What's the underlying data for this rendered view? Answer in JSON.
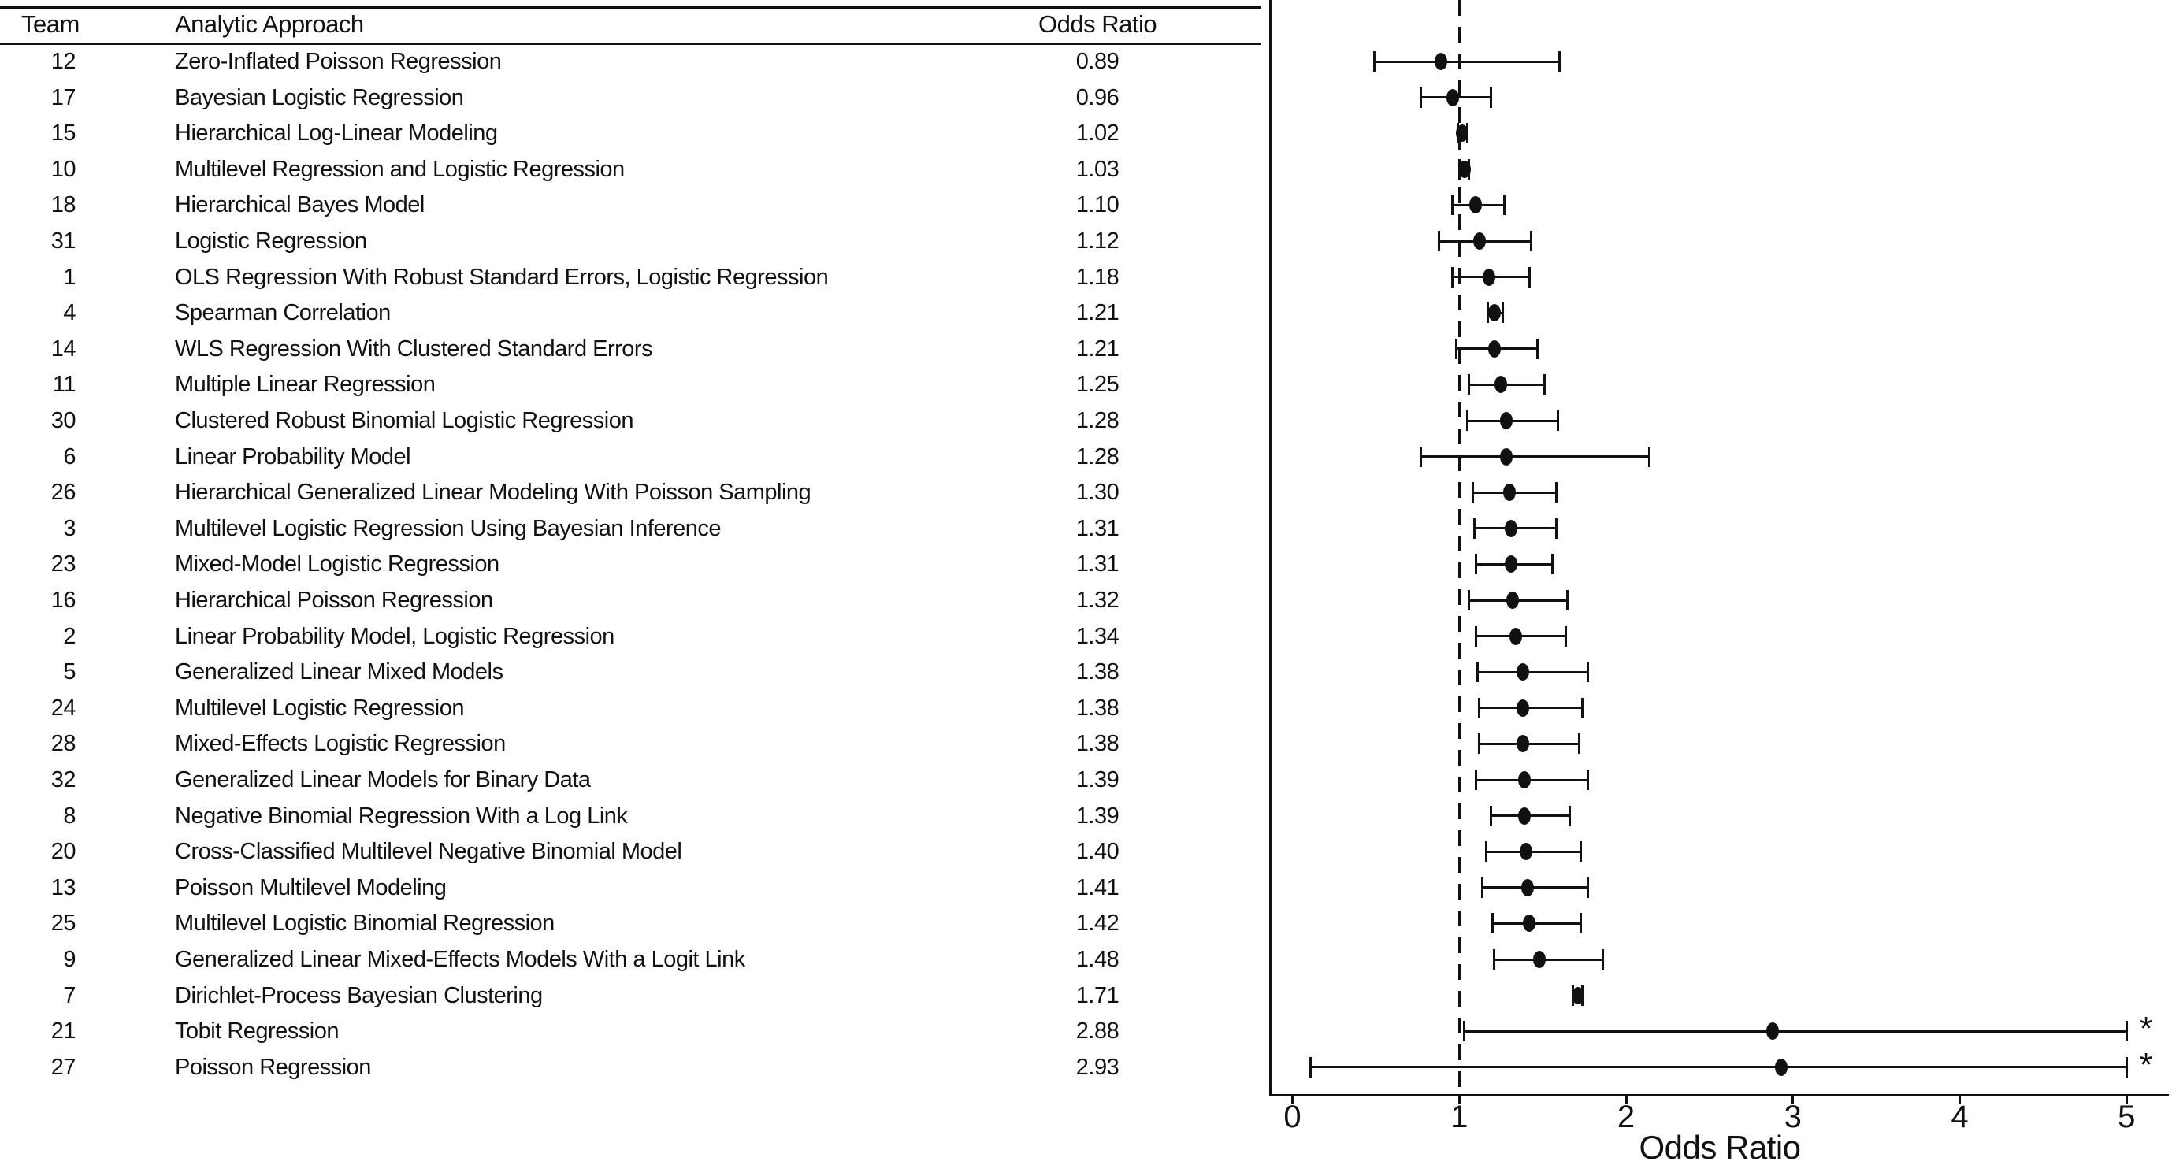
{
  "table": {
    "headers": {
      "team": "Team",
      "approach": "Analytic Approach",
      "odds_ratio": "Odds Ratio"
    }
  },
  "axis": {
    "xlabel": "Odds Ratio",
    "tick_labels": [
      "0",
      "1",
      "2",
      "3",
      "4",
      "5"
    ],
    "truncation_marker": "*"
  },
  "chart_data": {
    "type": "forest",
    "xlabel": "Odds Ratio",
    "x_ticks": [
      0,
      1,
      2,
      3,
      4,
      5
    ],
    "xlim": [
      -0.135,
      5.27
    ],
    "reference_line_x": 1,
    "grid": false,
    "rows": [
      {
        "team": "12",
        "approach": "Zero-Inflated Poisson Regression",
        "or_label": "0.89",
        "or": 0.89,
        "ci_low": 0.49,
        "ci_high": 1.6,
        "truncated": false
      },
      {
        "team": "17",
        "approach": "Bayesian Logistic Regression",
        "or_label": "0.96",
        "or": 0.96,
        "ci_low": 0.77,
        "ci_high": 1.19,
        "truncated": false
      },
      {
        "team": "15",
        "approach": "Hierarchical Log-Linear Modeling",
        "or_label": "1.02",
        "or": 1.02,
        "ci_low": 0.99,
        "ci_high": 1.05,
        "truncated": false
      },
      {
        "team": "10",
        "approach": "Multilevel Regression and Logistic Regression",
        "or_label": "1.03",
        "or": 1.03,
        "ci_low": 1.0,
        "ci_high": 1.06,
        "truncated": false
      },
      {
        "team": "18",
        "approach": "Hierarchical Bayes Model",
        "or_label": "1.10",
        "or": 1.1,
        "ci_low": 0.96,
        "ci_high": 1.27,
        "truncated": false
      },
      {
        "team": "31",
        "approach": "Logistic Regression",
        "or_label": "1.12",
        "or": 1.12,
        "ci_low": 0.88,
        "ci_high": 1.43,
        "truncated": false
      },
      {
        "team": "1",
        "approach": "OLS Regression With Robust Standard Errors, Logistic Regression",
        "or_label": "1.18",
        "or": 1.18,
        "ci_low": 0.96,
        "ci_high": 1.42,
        "truncated": false
      },
      {
        "team": "4",
        "approach": "Spearman Correlation",
        "or_label": "1.21",
        "or": 1.21,
        "ci_low": 1.17,
        "ci_high": 1.26,
        "truncated": false
      },
      {
        "team": "14",
        "approach": "WLS Regression With Clustered Standard Errors",
        "or_label": "1.21",
        "or": 1.21,
        "ci_low": 0.98,
        "ci_high": 1.47,
        "truncated": false
      },
      {
        "team": "11",
        "approach": "Multiple Linear Regression",
        "or_label": "1.25",
        "or": 1.25,
        "ci_low": 1.06,
        "ci_high": 1.51,
        "truncated": false
      },
      {
        "team": "30",
        "approach": "Clustered Robust Binomial Logistic Regression",
        "or_label": "1.28",
        "or": 1.28,
        "ci_low": 1.05,
        "ci_high": 1.59,
        "truncated": false
      },
      {
        "team": "6",
        "approach": "Linear Probability Model",
        "or_label": "1.28",
        "or": 1.28,
        "ci_low": 0.77,
        "ci_high": 2.14,
        "truncated": false
      },
      {
        "team": "26",
        "approach": "Hierarchical Generalized Linear Modeling With Poisson Sampling",
        "or_label": "1.30",
        "or": 1.3,
        "ci_low": 1.08,
        "ci_high": 1.58,
        "truncated": false
      },
      {
        "team": "3",
        "approach": "Multilevel Logistic Regression Using Bayesian Inference",
        "or_label": "1.31",
        "or": 1.31,
        "ci_low": 1.09,
        "ci_high": 1.58,
        "truncated": false
      },
      {
        "team": "23",
        "approach": "Mixed-Model Logistic Regression",
        "or_label": "1.31",
        "or": 1.31,
        "ci_low": 1.1,
        "ci_high": 1.56,
        "truncated": false
      },
      {
        "team": "16",
        "approach": "Hierarchical Poisson Regression",
        "or_label": "1.32",
        "or": 1.32,
        "ci_low": 1.06,
        "ci_high": 1.65,
        "truncated": false
      },
      {
        "team": "2",
        "approach": "Linear Probability Model, Logistic Regression",
        "or_label": "1.34",
        "or": 1.34,
        "ci_low": 1.1,
        "ci_high": 1.64,
        "truncated": false
      },
      {
        "team": "5",
        "approach": "Generalized Linear Mixed Models",
        "or_label": "1.38",
        "or": 1.38,
        "ci_low": 1.11,
        "ci_high": 1.77,
        "truncated": false
      },
      {
        "team": "24",
        "approach": "Multilevel Logistic Regression",
        "or_label": "1.38",
        "or": 1.38,
        "ci_low": 1.12,
        "ci_high": 1.74,
        "truncated": false
      },
      {
        "team": "28",
        "approach": "Mixed-Effects Logistic Regression",
        "or_label": "1.38",
        "or": 1.38,
        "ci_low": 1.12,
        "ci_high": 1.72,
        "truncated": false
      },
      {
        "team": "32",
        "approach": "Generalized Linear Models for Binary Data",
        "or_label": "1.39",
        "or": 1.39,
        "ci_low": 1.1,
        "ci_high": 1.77,
        "truncated": false
      },
      {
        "team": "8",
        "approach": "Negative Binomial Regression With a Log Link",
        "or_label": "1.39",
        "or": 1.39,
        "ci_low": 1.19,
        "ci_high": 1.66,
        "truncated": false
      },
      {
        "team": "20",
        "approach": "Cross-Classified Multilevel Negative Binomial Model",
        "or_label": "1.40",
        "or": 1.4,
        "ci_low": 1.16,
        "ci_high": 1.73,
        "truncated": false
      },
      {
        "team": "13",
        "approach": "Poisson Multilevel Modeling",
        "or_label": "1.41",
        "or": 1.41,
        "ci_low": 1.14,
        "ci_high": 1.77,
        "truncated": false
      },
      {
        "team": "25",
        "approach": "Multilevel Logistic Binomial Regression",
        "or_label": "1.42",
        "or": 1.42,
        "ci_low": 1.2,
        "ci_high": 1.73,
        "truncated": false
      },
      {
        "team": "9",
        "approach": "Generalized Linear Mixed-Effects Models With a Logit Link",
        "or_label": "1.48",
        "or": 1.48,
        "ci_low": 1.21,
        "ci_high": 1.86,
        "truncated": false
      },
      {
        "team": "7",
        "approach": "Dirichlet-Process Bayesian Clustering",
        "or_label": "1.71",
        "or": 1.71,
        "ci_low": 1.68,
        "ci_high": 1.74,
        "truncated": false
      },
      {
        "team": "21",
        "approach": "Tobit Regression",
        "or_label": "2.88",
        "or": 2.88,
        "ci_low": 1.03,
        "ci_high": 5.0,
        "truncated": true
      },
      {
        "team": "27",
        "approach": "Poisson Regression",
        "or_label": "2.93",
        "or": 2.93,
        "ci_low": 0.11,
        "ci_high": 5.0,
        "truncated": true
      }
    ]
  }
}
